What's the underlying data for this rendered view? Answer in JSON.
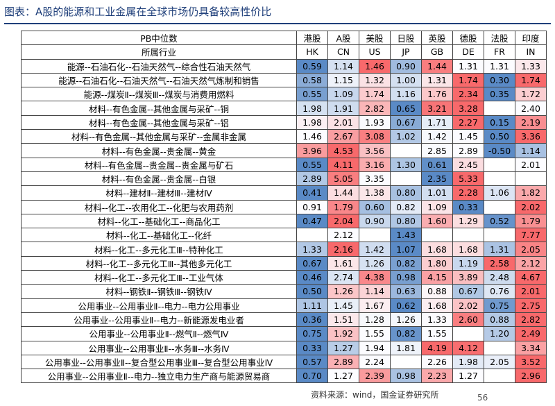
{
  "header": {
    "title": "图表：A股的能源和工业金属在全球市场仍具备较高性价比"
  },
  "table": {
    "head": [
      [
        "PB中位数",
        "港股",
        "A股",
        "美股",
        "日股",
        "英股",
        "德股",
        "法股",
        "印度"
      ],
      [
        "所属行业",
        "HK",
        "CN",
        "US",
        "JP",
        "GB",
        "DE",
        "FR",
        "IN"
      ]
    ],
    "rows": [
      [
        "能源--石油石化--石油天然气--综合性石油天然气",
        "0.59",
        "1.14",
        "1.46",
        "0.90",
        "1.44",
        "1.31",
        "1.31",
        "1.33"
      ],
      [
        "能源--石油石化--石油天然气--石油天然气炼制和销售",
        "0.58",
        "1.15",
        "1.32",
        "1.00",
        "1.31",
        "1.74",
        "0.30",
        "1.74"
      ],
      [
        "能源--煤炭Ⅱ--煤炭Ⅲ--煤炭与消费用燃料",
        "0.55",
        "1.09",
        "1.74",
        "1.16",
        "1.76",
        "2.34",
        "0.35",
        "1.72"
      ],
      [
        "材料--有色金属--其他金属与采矿--铜",
        "1.98",
        "1.91",
        "2.82",
        "0.65",
        "3.21",
        "3.28",
        null,
        "2.40"
      ],
      [
        "材料--有色金属--其他金属与采矿--铝",
        "1.98",
        "2.01",
        "1.93",
        "0.67",
        "1.71",
        "2.27",
        "0.15",
        "2.19"
      ],
      [
        "材料--有色金属--其他金属与采矿--金属非金属",
        "1.46",
        "2.67",
        "3.08",
        "1.02",
        "1.42",
        "1.45",
        "0.50",
        "3.36"
      ],
      [
        "材料--有色金属--贵金属--黄金",
        "3.96",
        "4.53",
        "3.56",
        null,
        "2.85",
        "2.89",
        "-0.50",
        "1.14"
      ],
      [
        "材料--有色金属--贵金属--贵金属与矿石",
        "0.55",
        "4.11",
        "3.16",
        "1.30",
        "0.61",
        "2.45",
        null,
        "2.01"
      ],
      [
        "材料--有色金属--贵金属--白银",
        "2.89",
        "5.05",
        "3.35",
        null,
        "2.35",
        "5.33",
        null,
        null
      ],
      [
        "材料--建材Ⅱ--建材Ⅲ--建材Ⅳ",
        "0.41",
        "1.44",
        "1.38",
        "0.80",
        "1.01",
        "2.28",
        "1.06",
        "1.82"
      ],
      [
        "材料--化工--农用化工--化肥与农用药剂",
        "0.91",
        "1.79",
        "0.60",
        "0.82",
        "1.09",
        "0.33",
        null,
        "2.02"
      ],
      [
        "材料--化工--基础化工--商品化工",
        "0.47",
        "2.04",
        "0.90",
        "0.80",
        "1.60",
        "1.29",
        "0.52",
        "1.79"
      ],
      [
        "材料--化工--基础化工--化纤",
        null,
        "2.12",
        null,
        "1.43",
        null,
        null,
        null,
        "7.77"
      ],
      [
        "材料--化工--多元化工Ⅲ--特种化工",
        "1.33",
        "2.16",
        "1.42",
        "1.07",
        "1.68",
        "1.68",
        "1.31",
        "2.05"
      ],
      [
        "材料--化工--多元化工Ⅲ--其他多元化工",
        "0.67",
        "1.61",
        "1.26",
        "0.82",
        "1.80",
        "1.19",
        "2.58",
        "2.12"
      ],
      [
        "材料--化工--多元化工Ⅲ--工业气体",
        "0.46",
        "2.74",
        "4.38",
        "0.98",
        "4.15",
        "3.89",
        "2.48",
        "4.67"
      ],
      [
        "材料--钢铁Ⅱ--钢铁Ⅲ--钢铁Ⅳ",
        "0.50",
        "1.26",
        "1.14",
        "0.63",
        "0.88",
        "0.67",
        "0.76",
        "2.01"
      ],
      [
        "公用事业--公用事业Ⅱ--电力--电力公用事业",
        "1.11",
        "1.45",
        "1.67",
        "0.62",
        "1.68",
        "2.02",
        "0.75",
        "2.75"
      ],
      [
        "公用事业--公用事业Ⅱ--电力--新能源发电业者",
        "0.36",
        "1.51",
        "1.28",
        "1.26",
        "1.33",
        "2.60",
        "0.88",
        "2.82"
      ],
      [
        "公用事业--公用事业Ⅱ--燃气Ⅱ--燃气Ⅳ",
        "0.75",
        "1.92",
        "1.55",
        "0.82",
        "1.55",
        null,
        "1.20",
        "2.49"
      ],
      [
        "公用事业--公用事业Ⅱ--水务Ⅲ--水务Ⅳ",
        "0.33",
        "1.27",
        "1.94",
        "1.81",
        "4.19",
        "4.12",
        null,
        "3.34"
      ],
      [
        "公用事业--公用事业Ⅱ--复合型公用事业Ⅲ--复合型公用事业Ⅳ",
        "0.57",
        "2.89",
        "2.24",
        null,
        "2.26",
        "1.98",
        "2.05",
        "3.52"
      ],
      [
        "公用事业--公用事业Ⅱ--电力--独立电力生产商与能源贸易商",
        "0.70",
        "1.27",
        "2.39",
        "0.98",
        "2.23",
        "1.27",
        null,
        "2.96"
      ]
    ]
  },
  "footer": {
    "source": "资料来源：wind，国金证券研究所",
    "page": "56"
  }
}
